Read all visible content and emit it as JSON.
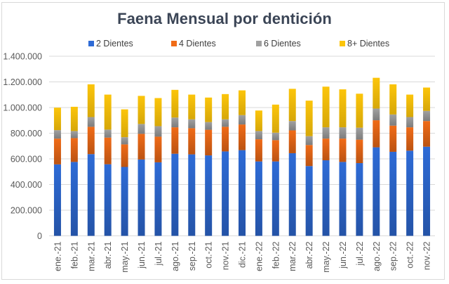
{
  "chart_data": {
    "type": "bar",
    "stacked": true,
    "title": "Faena Mensual por dentición",
    "xlabel": "",
    "ylabel": "",
    "ylim": [
      0,
      1400000
    ],
    "yticks": [
      0,
      200000,
      400000,
      600000,
      800000,
      1000000,
      1200000,
      1400000
    ],
    "ytick_labels": [
      "0",
      "200.000",
      "400.000",
      "600.000",
      "800.000",
      "1.000.000",
      "1.200.000",
      "1.400.000"
    ],
    "grid": true,
    "legend_position": "top",
    "categories": [
      "ene.-21",
      "feb.-21",
      "mar.-21",
      "abr.-21",
      "may.-21",
      "jun.-21",
      "jul.-21",
      "ago.-21",
      "sep.-21",
      "oct.-21",
      "nov.-21",
      "dic.-21",
      "ene.-22",
      "feb.-22",
      "mar.-22",
      "abr.-22",
      "may.-22",
      "jun.-22",
      "jul.-22",
      "ago.-22",
      "sep.-22",
      "oct.-22",
      "nov.-22"
    ],
    "series": [
      {
        "name": "2 Dientes",
        "color": "#2e6bd6",
        "values": [
          557000,
          576000,
          637000,
          558000,
          537000,
          595000,
          573000,
          640000,
          635000,
          627000,
          658000,
          668000,
          580000,
          580000,
          644000,
          544000,
          589000,
          576000,
          567000,
          690000,
          655000,
          664000,
          695000
        ]
      },
      {
        "name": "4 Dientes",
        "color": "#f06b17",
        "values": [
          201000,
          186000,
          213000,
          208000,
          176000,
          200000,
          200000,
          206000,
          204000,
          200000,
          192000,
          200000,
          173000,
          166000,
          178000,
          164000,
          169000,
          182000,
          183000,
          211000,
          204000,
          182000,
          200000
        ]
      },
      {
        "name": "6 Dientes",
        "color": "#a0a0a0",
        "values": [
          66000,
          55000,
          76000,
          62000,
          56000,
          77000,
          82000,
          76000,
          69000,
          60000,
          58000,
          73000,
          64000,
          58000,
          73000,
          69000,
          88000,
          88000,
          93000,
          91000,
          87000,
          80000,
          79000
        ]
      },
      {
        "name": "8+ Dientes",
        "color": "#fcc50a",
        "values": [
          175000,
          189000,
          255000,
          273000,
          217000,
          219000,
          219000,
          216000,
          193000,
          191000,
          197000,
          193000,
          160000,
          219000,
          251000,
          277000,
          317000,
          296000,
          265000,
          240000,
          235000,
          175000,
          182000
        ]
      }
    ]
  }
}
